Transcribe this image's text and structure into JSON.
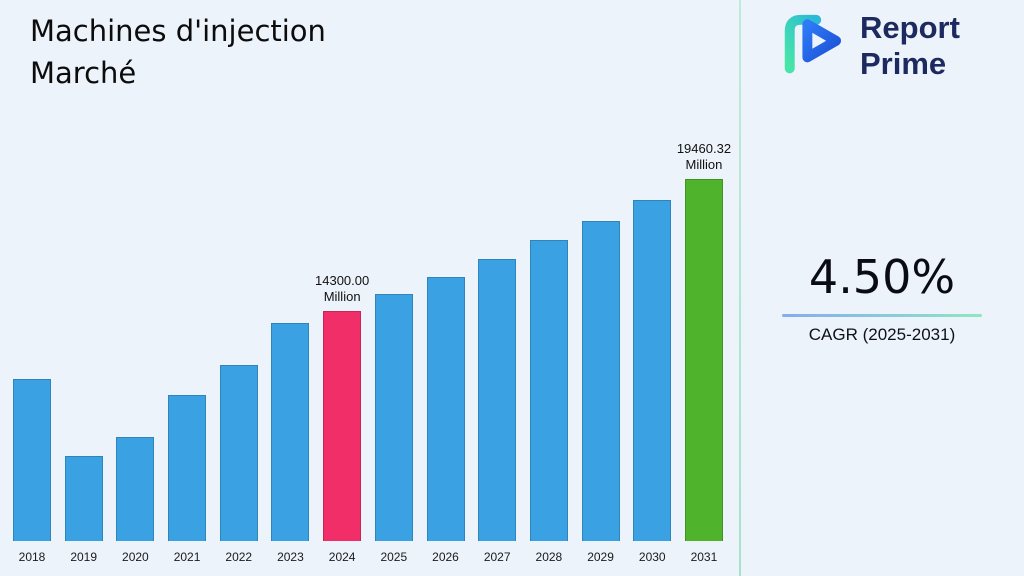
{
  "title": {
    "line1": "Machines d'injection",
    "line2": "Marché"
  },
  "brand": {
    "line1": "Report",
    "line2": "Prime"
  },
  "cagr": {
    "value": "4.50%",
    "label": "CAGR (2025-2031)"
  },
  "chart_data": {
    "type": "bar",
    "title": "Machines d'injection Marché",
    "unit": "Million",
    "categories": [
      "2018",
      "2019",
      "2020",
      "2021",
      "2022",
      "2023",
      "2024",
      "2025",
      "2026",
      "2027",
      "2028",
      "2029",
      "2030",
      "2031"
    ],
    "values": [
      11640,
      8630,
      9370,
      11020,
      12190,
      13830,
      14300.0,
      14943.5,
      15615.96,
      16318.68,
      17053.02,
      17820.41,
      18622.33,
      19460.32
    ],
    "ylim": [
      5300,
      21000
    ],
    "legend": false,
    "grid": false,
    "annotations": [
      {
        "index": 6,
        "lines": [
          "14300.00",
          "Million"
        ]
      },
      {
        "index": 13,
        "lines": [
          "19460.32",
          "Million"
        ]
      }
    ],
    "bar_colors": {
      "default": "#3aa2e2",
      "2024": "#f22e68",
      "2031": "#4fb32c"
    }
  }
}
